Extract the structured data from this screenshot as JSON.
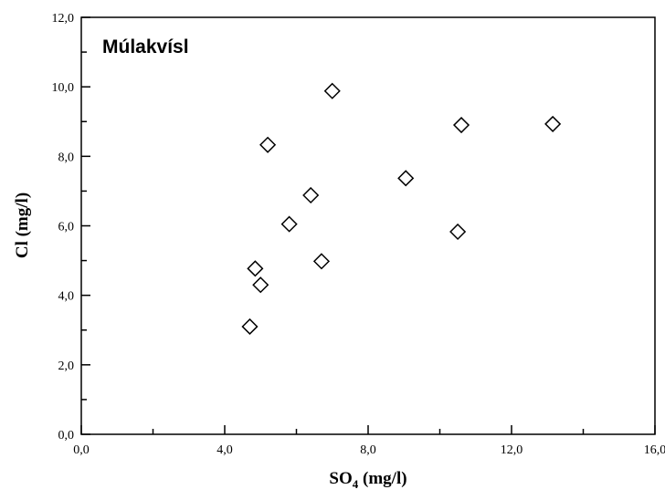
{
  "chart_data": {
    "type": "scatter",
    "title": "Múlakvísl",
    "xlabel": {
      "main": "SO",
      "sub": "4",
      "unit": " (mg/l)"
    },
    "ylabel": "Cl (mg/l)",
    "xlim": [
      0,
      16
    ],
    "ylim": [
      0,
      12
    ],
    "x_major_ticks": [
      0,
      4,
      8,
      12,
      16
    ],
    "x_tick_labels": [
      "0,0",
      "4,0",
      "8,0",
      "12,0",
      "16,0"
    ],
    "y_major_ticks": [
      0,
      2,
      4,
      6,
      8,
      10,
      12
    ],
    "y_tick_labels": [
      "0,0",
      "2,0",
      "4,0",
      "6,0",
      "8,0",
      "10,0",
      "12,0"
    ],
    "minor_tick_step": 2,
    "grid": false,
    "marker": "open-diamond",
    "series": [
      {
        "points": [
          {
            "x": 4.7,
            "y": 3.1
          },
          {
            "x": 4.85,
            "y": 4.77
          },
          {
            "x": 5.0,
            "y": 4.3
          },
          {
            "x": 5.2,
            "y": 8.33
          },
          {
            "x": 5.8,
            "y": 6.05
          },
          {
            "x": 6.4,
            "y": 6.88
          },
          {
            "x": 6.7,
            "y": 4.98
          },
          {
            "x": 7.0,
            "y": 9.88
          },
          {
            "x": 9.05,
            "y": 7.37
          },
          {
            "x": 10.5,
            "y": 5.83
          },
          {
            "x": 10.6,
            "y": 8.9
          },
          {
            "x": 13.15,
            "y": 8.93
          }
        ]
      }
    ]
  }
}
